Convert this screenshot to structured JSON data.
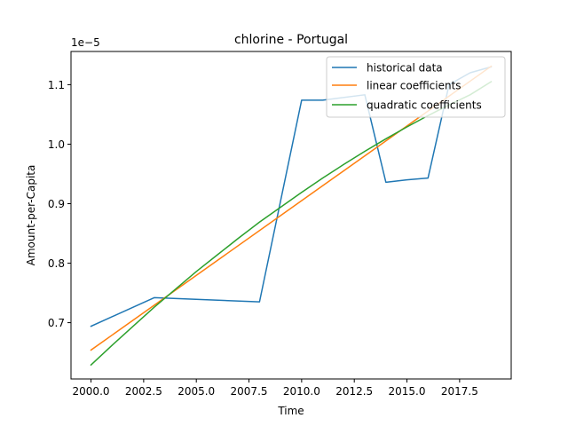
{
  "chart_data": {
    "type": "line",
    "title": "chlorine - Portugal",
    "xlabel": "Time",
    "ylabel": "Amount-per-Capita",
    "y_multiplier_label": "1e−5",
    "xlim": [
      1999.05,
      2019.95
    ],
    "ylim": [
      0.6054,
      1.1558
    ],
    "x_ticks": [
      2000.0,
      2002.5,
      2005.0,
      2007.5,
      2010.0,
      2012.5,
      2015.0,
      2017.5
    ],
    "x_tick_labels": [
      "2000.0",
      "2002.5",
      "2005.0",
      "2007.5",
      "2010.0",
      "2012.5",
      "2015.0",
      "2017.5"
    ],
    "y_ticks": [
      0.7,
      0.8,
      0.9,
      1.0,
      1.1
    ],
    "y_tick_labels": [
      "0.7",
      "0.8",
      "0.9",
      "1.0",
      "1.1"
    ],
    "grid": false,
    "legend_placement": "upper right",
    "series": [
      {
        "name": "historical data",
        "color": "#1f77b4",
        "x": [
          2000,
          2003,
          2008,
          2010,
          2011,
          2013,
          2014,
          2015,
          2016,
          2017,
          2018,
          2019
        ],
        "values": [
          0.694,
          0.742,
          0.735,
          1.074,
          1.074,
          1.083,
          0.936,
          0.94,
          0.943,
          1.1,
          1.12,
          1.13
        ]
      },
      {
        "name": "linear coefficients",
        "color": "#ff7f0e",
        "x": [
          2000,
          2019
        ],
        "values": [
          0.654,
          1.131
        ]
      },
      {
        "name": "quadratic coefficients",
        "color": "#2ca02c",
        "x": [
          2000,
          2001,
          2002,
          2003,
          2004,
          2005,
          2006,
          2007,
          2008,
          2009,
          2010,
          2011,
          2012,
          2013,
          2014,
          2015,
          2016,
          2017,
          2018,
          2019
        ],
        "values": [
          0.629,
          0.662,
          0.694,
          0.726,
          0.756,
          0.786,
          0.814,
          0.842,
          0.869,
          0.894,
          0.919,
          0.943,
          0.966,
          0.988,
          1.009,
          1.029,
          1.048,
          1.066,
          1.083,
          1.105
        ]
      }
    ]
  }
}
